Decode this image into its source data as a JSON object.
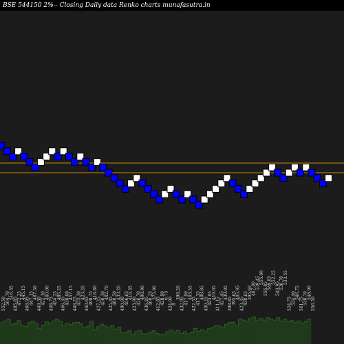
{
  "title": "BSE 544150  2%-- Closing Daily data Renko  charts munafasutra.in",
  "colors": {
    "background": "#000000",
    "panel": "#1c1c1c",
    "up_brick": "#ffffff",
    "down_brick": "#0000ff",
    "brick_outline": "#000000",
    "resistance_line": "#cc8800",
    "volume_fill": "#1f3a1a",
    "volume_edge": "#2f5a24",
    "volume_label": "#dddddd"
  },
  "chart_data": {
    "type": "renko",
    "grid": false,
    "y_direction": "inverted",
    "bricks": [
      {
        "level": 0,
        "dir": "down"
      },
      {
        "level": 1,
        "dir": "down"
      },
      {
        "level": 2,
        "dir": "down"
      },
      {
        "level": 1,
        "dir": "up"
      },
      {
        "level": 2,
        "dir": "down"
      },
      {
        "level": 3,
        "dir": "down"
      },
      {
        "level": 4,
        "dir": "down"
      },
      {
        "level": 3,
        "dir": "up"
      },
      {
        "level": 2,
        "dir": "up"
      },
      {
        "level": 1,
        "dir": "up"
      },
      {
        "level": 2,
        "dir": "down"
      },
      {
        "level": 1,
        "dir": "up"
      },
      {
        "level": 2,
        "dir": "down"
      },
      {
        "level": 3,
        "dir": "down"
      },
      {
        "level": 2,
        "dir": "up"
      },
      {
        "level": 3,
        "dir": "down"
      },
      {
        "level": 4,
        "dir": "down"
      },
      {
        "level": 3,
        "dir": "up"
      },
      {
        "level": 4,
        "dir": "down"
      },
      {
        "level": 5,
        "dir": "down"
      },
      {
        "level": 6,
        "dir": "down"
      },
      {
        "level": 7,
        "dir": "down"
      },
      {
        "level": 8,
        "dir": "down"
      },
      {
        "level": 7,
        "dir": "up"
      },
      {
        "level": 6,
        "dir": "up"
      },
      {
        "level": 7,
        "dir": "down"
      },
      {
        "level": 8,
        "dir": "down"
      },
      {
        "level": 9,
        "dir": "down"
      },
      {
        "level": 10,
        "dir": "down"
      },
      {
        "level": 9,
        "dir": "up"
      },
      {
        "level": 8,
        "dir": "up"
      },
      {
        "level": 9,
        "dir": "down"
      },
      {
        "level": 10,
        "dir": "down"
      },
      {
        "level": 9,
        "dir": "up"
      },
      {
        "level": 10,
        "dir": "down"
      },
      {
        "level": 11,
        "dir": "down"
      },
      {
        "level": 10,
        "dir": "up"
      },
      {
        "level": 9,
        "dir": "up"
      },
      {
        "level": 8,
        "dir": "up"
      },
      {
        "level": 7,
        "dir": "up"
      },
      {
        "level": 6,
        "dir": "up"
      },
      {
        "level": 7,
        "dir": "down"
      },
      {
        "level": 8,
        "dir": "down"
      },
      {
        "level": 9,
        "dir": "down"
      },
      {
        "level": 8,
        "dir": "up"
      },
      {
        "level": 7,
        "dir": "up"
      },
      {
        "level": 6,
        "dir": "up"
      },
      {
        "level": 5,
        "dir": "up"
      },
      {
        "level": 4,
        "dir": "up"
      },
      {
        "level": 5,
        "dir": "down"
      },
      {
        "level": 6,
        "dir": "down"
      },
      {
        "level": 5,
        "dir": "up"
      },
      {
        "level": 4,
        "dir": "up"
      },
      {
        "level": 5,
        "dir": "down"
      },
      {
        "level": 4,
        "dir": "up"
      },
      {
        "level": 5,
        "dir": "down"
      },
      {
        "level": 6,
        "dir": "down"
      },
      {
        "level": 7,
        "dir": "down"
      },
      {
        "level": 6,
        "dir": "up"
      }
    ],
    "resistance_lines": [
      {
        "level": 3.2
      },
      {
        "level": 5.0
      }
    ],
    "volume_labels": [
      "552.50",
      "504.70",
      "516.35",
      "485.85",
      "472.25",
      "445.15",
      "468.95",
      "447.15",
      "467.50",
      "449.30",
      "422.10",
      "440.00",
      "408.75",
      "454.25",
      "485.25",
      "466.35",
      "438.00",
      "457.15",
      "448.25",
      "433.30",
      "423.20",
      "440.65",
      "408.75",
      "418.80",
      "427.25",
      "450.30",
      "442.70",
      "425.35",
      "480.50",
      "433.20",
      "490.00",
      "456.65",
      "410.35",
      "423.90",
      "426.70",
      "408.90",
      "436.85",
      "400.25",
      "375.90",
      "412.85",
      "428.90",
      "6.75",
      "424.00",
      "8",
      "398.20",
      "432.95",
      "417.90",
      "403.55",
      "422.55",
      "417.35",
      "408.85",
      "400.25",
      "423.95",
      "419.05",
      "411.15",
      "427.45",
      "430.95",
      "398.85",
      "395.65",
      "405.95",
      "423.35",
      "430.65",
      "395.60",
      "467.00",
      "539.45",
      "555.00",
      "556.85",
      "549.85",
      "552.25",
      "540.95",
      "536.70",
      "533.55",
      "524.75",
      "534.40",
      "546.75",
      "561.75",
      "538.70",
      "548.90",
      "556.50"
    ],
    "volume_bars": [
      0.52,
      0.56,
      0.6,
      0.48,
      0.5,
      0.57,
      0.45,
      0.42,
      0.52,
      0.55,
      0.5,
      0.38,
      0.46,
      0.54,
      0.5,
      0.56,
      0.6,
      0.55,
      0.44,
      0.5,
      0.47,
      0.52,
      0.53,
      0.49,
      0.4,
      0.43,
      0.55,
      0.35,
      0.42,
      0.48,
      0.44,
      0.39,
      0.45,
      0.36,
      0.41,
      0.27,
      0.28,
      0.32,
      0.22,
      0.3,
      0.33,
      0.25,
      0.25,
      0.28,
      0.32,
      0.26,
      0.22,
      0.24,
      0.3,
      0.34,
      0.29,
      0.33,
      0.26,
      0.3,
      0.24,
      0.28,
      0.38,
      0.31,
      0.35,
      0.3,
      0.37,
      0.4,
      0.45,
      0.44,
      0.4,
      0.48,
      0.52,
      0.53,
      0.46,
      0.6,
      0.58,
      0.55,
      0.62,
      0.65,
      0.58,
      0.62,
      0.58,
      0.64,
      0.6,
      0.58,
      0.64,
      0.55,
      0.6,
      0.54,
      0.57,
      0.52,
      0.56,
      0.5,
      0.55,
      0.6
    ]
  }
}
